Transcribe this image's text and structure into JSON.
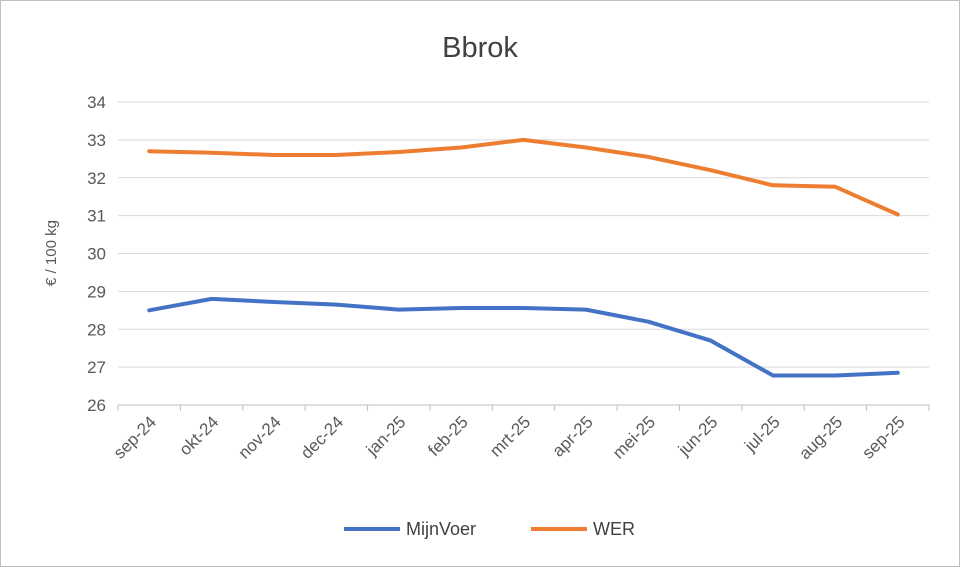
{
  "chart_data": {
    "type": "line",
    "title": "Bbrok",
    "xlabel": "",
    "ylabel": "€ / 100 kg",
    "ylim": [
      26,
      34
    ],
    "yticks": [
      26,
      27,
      28,
      29,
      30,
      31,
      32,
      33,
      34
    ],
    "categories": [
      "sep-24",
      "okt-24",
      "nov-24",
      "dec-24",
      "jan-25",
      "feb-25",
      "mrt-25",
      "apr-25",
      "mei-25",
      "jun-25",
      "jul-25",
      "aug-25",
      "sep-25"
    ],
    "series": [
      {
        "name": "MijnVoer",
        "color": "#4472C4",
        "values": [
          28.5,
          28.8,
          28.72,
          28.65,
          28.52,
          28.56,
          28.56,
          28.52,
          28.2,
          27.7,
          26.78,
          26.78,
          26.85
        ]
      },
      {
        "name": "WER",
        "color": "#ED7D31",
        "values": [
          32.7,
          32.66,
          32.6,
          32.6,
          32.68,
          32.8,
          33.0,
          32.8,
          32.55,
          32.2,
          31.8,
          31.76,
          31.03
        ]
      }
    ],
    "grid": true,
    "legend_position": "bottom"
  }
}
